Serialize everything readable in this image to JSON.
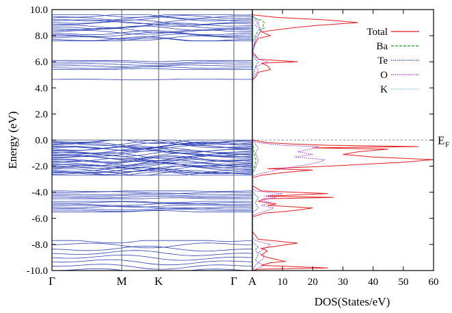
{
  "chart_data": [
    {
      "type": "line",
      "panel": "band-structure",
      "ylabel": "Energy (eV)",
      "ylim": [
        -10,
        10
      ],
      "yticks": [
        "10.0",
        "8.0",
        "6.0",
        "4.0",
        "2.0",
        "0.0",
        "-2.0",
        "-4.0",
        "-6.0",
        "-8.0",
        "-10.0"
      ],
      "kpath": [
        "Γ",
        "M",
        "K",
        "Γ",
        "A"
      ],
      "band_groups": [
        {
          "range": [
            7.6,
            9.6
          ],
          "description": "conduction bands"
        },
        {
          "range": [
            5.4,
            6.1
          ],
          "description": "conduction bands"
        },
        {
          "range": [
            4.6,
            4.7
          ],
          "description": "lowest conduction band"
        },
        {
          "range": [
            -2.7,
            0.0
          ],
          "description": "valence bands"
        },
        {
          "range": [
            -4.5,
            -3.9
          ],
          "description": "valence bands"
        },
        {
          "range": [
            -5.5,
            -4.7
          ],
          "description": "valence bands"
        },
        {
          "range": [
            -10.0,
            -7.7
          ],
          "description": "deep valence bands"
        }
      ],
      "fermi_level": 0.0,
      "fermi_label": "E",
      "fermi_sub": "F",
      "grid": false
    },
    {
      "type": "line",
      "panel": "density-of-states",
      "xlabel": "DOS(States/eV)",
      "xlim": [
        0,
        60
      ],
      "xticks": [
        "10",
        "20",
        "30",
        "40",
        "50",
        "60"
      ],
      "ylim": [
        -10,
        10
      ],
      "legend_position": "top-right",
      "series": [
        {
          "name": "Total",
          "color": "#e41a1c",
          "style": "solid",
          "points": [
            [
              0,
              -10
            ],
            [
              2,
              -9.9
            ],
            [
              25,
              -9.8
            ],
            [
              3,
              -9.6
            ],
            [
              6,
              -9.4
            ],
            [
              11,
              -9.3
            ],
            [
              5,
              -9.0
            ],
            [
              3,
              -8.8
            ],
            [
              5,
              -8.5
            ],
            [
              3,
              -8.3
            ],
            [
              9,
              -8.1
            ],
            [
              15,
              -7.9
            ],
            [
              2,
              -7.6
            ],
            [
              0,
              -7.0
            ],
            [
              0,
              -5.9
            ],
            [
              4,
              -5.6
            ],
            [
              14,
              -5.4
            ],
            [
              20,
              -5.2
            ],
            [
              5,
              -5.0
            ],
            [
              8,
              -4.9
            ],
            [
              2,
              -4.7
            ],
            [
              4,
              -4.5
            ],
            [
              27,
              -4.4
            ],
            [
              5,
              -4.3
            ],
            [
              25,
              -4.1
            ],
            [
              3,
              -3.9
            ],
            [
              0,
              -3.5
            ],
            [
              0,
              -2.9
            ],
            [
              3,
              -2.7
            ],
            [
              10,
              -2.5
            ],
            [
              20,
              -2.3
            ],
            [
              5,
              -2.2
            ],
            [
              25,
              -2.0
            ],
            [
              50,
              -1.7
            ],
            [
              60,
              -1.5
            ],
            [
              40,
              -1.3
            ],
            [
              30,
              -1.1
            ],
            [
              35,
              -0.9
            ],
            [
              45,
              -0.7
            ],
            [
              20,
              -0.6
            ],
            [
              55,
              -0.5
            ],
            [
              25,
              -0.4
            ],
            [
              13,
              -0.3
            ],
            [
              5,
              -0.2
            ],
            [
              0,
              0
            ],
            [
              0,
              4.6
            ],
            [
              1,
              4.8
            ],
            [
              2,
              5.2
            ],
            [
              6,
              5.4
            ],
            [
              5,
              5.7
            ],
            [
              3,
              5.9
            ],
            [
              15,
              6.0
            ],
            [
              2,
              6.2
            ],
            [
              0,
              6.8
            ],
            [
              1,
              7.4
            ],
            [
              2,
              7.8
            ],
            [
              6,
              8.0
            ],
            [
              3,
              8.3
            ],
            [
              13,
              8.6
            ],
            [
              22,
              8.8
            ],
            [
              35,
              9.0
            ],
            [
              25,
              9.2
            ],
            [
              8,
              9.4
            ],
            [
              0,
              9.6
            ]
          ]
        },
        {
          "name": "Ba",
          "color": "#1a9a1a",
          "style": "dashed",
          "points": [
            [
              0,
              -10
            ],
            [
              0,
              -2.5
            ],
            [
              0.8,
              -2.0
            ],
            [
              1.2,
              -1.5
            ],
            [
              0.6,
              -1.0
            ],
            [
              0,
              0
            ],
            [
              0,
              7.5
            ],
            [
              1,
              8.0
            ],
            [
              2,
              8.4
            ],
            [
              4,
              8.6
            ],
            [
              3.5,
              8.8
            ],
            [
              4,
              9.0
            ],
            [
              3,
              9.2
            ],
            [
              1,
              9.3
            ],
            [
              0,
              9.5
            ]
          ]
        },
        {
          "name": "Te",
          "color": "#1f3fb0",
          "style": "dotted",
          "points": [
            [
              0,
              -10
            ],
            [
              1,
              -9.6
            ],
            [
              2,
              -9.4
            ],
            [
              1,
              -9.2
            ],
            [
              2,
              -8.8
            ],
            [
              1,
              -8.4
            ],
            [
              2,
              -8.2
            ],
            [
              0,
              -7.8
            ],
            [
              0,
              -5.6
            ],
            [
              1,
              -5.4
            ],
            [
              2,
              -5.2
            ],
            [
              1,
              -4.8
            ],
            [
              2,
              -4.4
            ],
            [
              1,
              -4.2
            ],
            [
              0,
              -3.9
            ],
            [
              0,
              -2.6
            ],
            [
              1,
              -2.2
            ],
            [
              2,
              -1.5
            ],
            [
              1,
              -1.0
            ],
            [
              2,
              -0.6
            ],
            [
              1,
              -0.3
            ],
            [
              0,
              0
            ],
            [
              0,
              4.6
            ],
            [
              1,
              5.6
            ],
            [
              2,
              6.0
            ],
            [
              1,
              6.2
            ],
            [
              0,
              6.6
            ],
            [
              1,
              7.8
            ],
            [
              3,
              8.4
            ],
            [
              2,
              8.8
            ],
            [
              2,
              9.2
            ],
            [
              0,
              9.5
            ]
          ]
        },
        {
          "name": "O",
          "color": "#a020f0",
          "style": "dotted",
          "points": [
            [
              0,
              -10
            ],
            [
              2,
              -9.8
            ],
            [
              4,
              -9.6
            ],
            [
              2,
              -9.4
            ],
            [
              4,
              -9.0
            ],
            [
              2,
              -8.6
            ],
            [
              5,
              -8.2
            ],
            [
              6,
              -8.0
            ],
            [
              1,
              -7.7
            ],
            [
              0,
              -7.4
            ],
            [
              0,
              -5.8
            ],
            [
              2,
              -5.6
            ],
            [
              5,
              -5.4
            ],
            [
              7,
              -5.2
            ],
            [
              3,
              -5.0
            ],
            [
              6,
              -4.8
            ],
            [
              3,
              -4.6
            ],
            [
              8,
              -4.4
            ],
            [
              4,
              -4.3
            ],
            [
              10,
              -4.1
            ],
            [
              1,
              -3.9
            ],
            [
              0,
              -3.6
            ],
            [
              0,
              -2.8
            ],
            [
              2,
              -2.6
            ],
            [
              6,
              -2.4
            ],
            [
              8,
              -2.3
            ],
            [
              12,
              -2.1
            ],
            [
              18,
              -1.9
            ],
            [
              22,
              -1.7
            ],
            [
              24,
              -1.5
            ],
            [
              14,
              -1.3
            ],
            [
              20,
              -1.1
            ],
            [
              15,
              -0.9
            ],
            [
              19,
              -0.7
            ],
            [
              22,
              -0.5
            ],
            [
              10,
              -0.4
            ],
            [
              6,
              -0.3
            ],
            [
              2,
              -0.2
            ],
            [
              0,
              0
            ],
            [
              0,
              4.6
            ],
            [
              2,
              5.4
            ],
            [
              1,
              5.6
            ],
            [
              5,
              6.0
            ],
            [
              2,
              6.2
            ],
            [
              0,
              6.6
            ],
            [
              1,
              7.6
            ],
            [
              2,
              8.0
            ],
            [
              3,
              8.4
            ],
            [
              1,
              8.8
            ],
            [
              2,
              9.0
            ],
            [
              0,
              9.3
            ]
          ]
        },
        {
          "name": "K",
          "color": "#7ec8e3",
          "style": "dotted",
          "points": [
            [
              0,
              -10
            ],
            [
              0.3,
              -5
            ],
            [
              0.3,
              -1
            ],
            [
              0,
              0
            ],
            [
              0.3,
              6
            ],
            [
              0.3,
              9
            ],
            [
              0,
              10
            ]
          ]
        }
      ]
    }
  ]
}
